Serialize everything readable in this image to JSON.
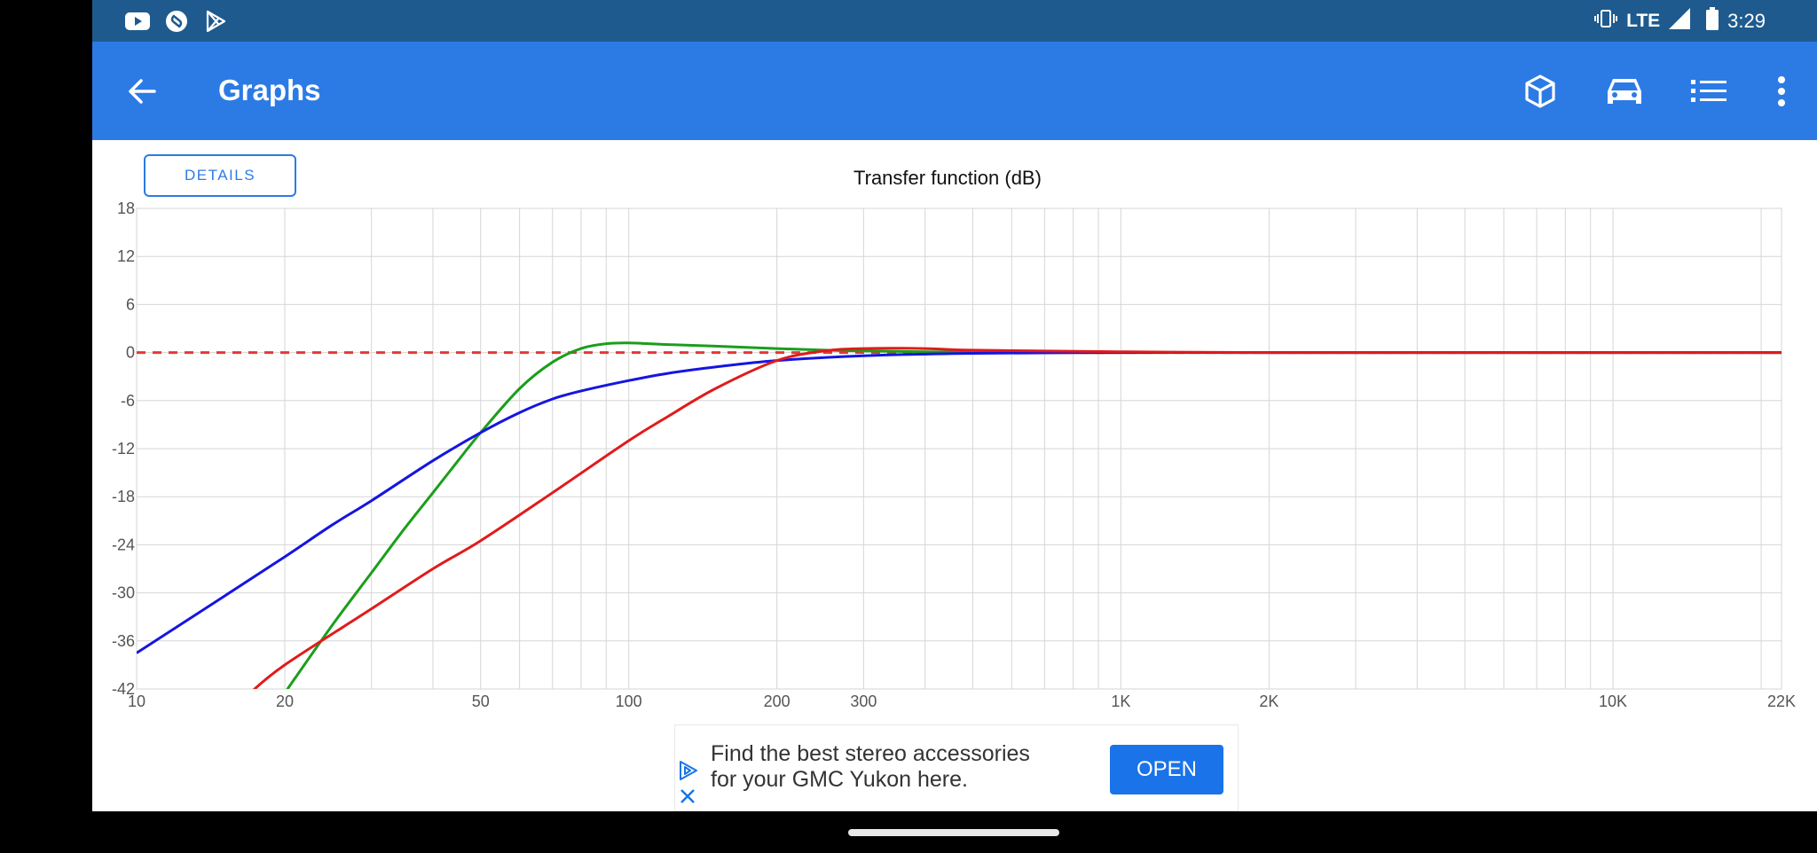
{
  "status_bar": {
    "time": "3:29",
    "network": "LTE",
    "left_icons": [
      "youtube-icon",
      "shazam-icon",
      "play-store-icon"
    ],
    "right_icons": [
      "vibrate-icon",
      "signal-icon",
      "battery-icon"
    ]
  },
  "app_bar": {
    "title": "Graphs",
    "back_icon": "arrow-left-icon",
    "actions": [
      "cube-icon",
      "car-icon",
      "list-icon",
      "more-vert-icon"
    ],
    "color": "#2c7be5"
  },
  "details_button": {
    "label": "DETAILS"
  },
  "chart_data": {
    "type": "line",
    "title": "Transfer function (dB)",
    "x_scale": "log",
    "xlim": [
      10,
      22000
    ],
    "ylim": [
      -42,
      18
    ],
    "x_ticks": [
      {
        "value": 10,
        "label": "10"
      },
      {
        "value": 20,
        "label": "20"
      },
      {
        "value": 50,
        "label": "50"
      },
      {
        "value": 100,
        "label": "100"
      },
      {
        "value": 200,
        "label": "200"
      },
      {
        "value": 300,
        "label": "300"
      },
      {
        "value": 1000,
        "label": "1K"
      },
      {
        "value": 2000,
        "label": "2K"
      },
      {
        "value": 10000,
        "label": "10K"
      },
      {
        "value": 22000,
        "label": "22K"
      }
    ],
    "y_ticks": [
      18,
      12,
      6,
      0,
      -6,
      -12,
      -18,
      -24,
      -30,
      -36,
      -42
    ],
    "grid": true,
    "reference_line": {
      "y": 0,
      "style": "dashed",
      "color": "#e53935"
    },
    "series": [
      {
        "color": "#1b9e1b",
        "x": [
          20,
          25,
          30,
          35,
          40,
          45,
          50,
          60,
          70,
          80,
          90,
          100,
          120,
          150,
          200,
          250,
          300,
          400,
          500,
          700,
          1000,
          2000,
          5000,
          10000,
          22000
        ],
        "y": [
          -42.5,
          -34,
          -27.5,
          -22,
          -17.5,
          -13.5,
          -10,
          -4.5,
          -1.2,
          0.5,
          1.1,
          1.2,
          1.0,
          0.8,
          0.5,
          0.3,
          0.2,
          0.1,
          0.05,
          0,
          0,
          0,
          0,
          0,
          0
        ]
      },
      {
        "color": "#1515e0",
        "x": [
          10,
          15,
          20,
          25,
          30,
          40,
          50,
          60,
          70,
          80,
          100,
          120,
          150,
          200,
          300,
          500,
          1000,
          2000,
          5000,
          10000,
          22000
        ],
        "y": [
          -37.5,
          -30.5,
          -25.5,
          -21.5,
          -18.5,
          -13.5,
          -10,
          -7.5,
          -5.8,
          -4.8,
          -3.5,
          -2.6,
          -1.8,
          -1.0,
          -0.4,
          -0.1,
          0,
          0,
          0,
          0,
          0
        ]
      },
      {
        "color": "#e01b1b",
        "x": [
          17,
          20,
          30,
          40,
          50,
          70,
          100,
          120,
          150,
          200,
          250,
          300,
          400,
          500,
          1000,
          2000,
          5000,
          10000,
          22000
        ],
        "y": [
          -42.5,
          -39,
          -32,
          -27,
          -23.5,
          -17.5,
          -11,
          -8,
          -4.5,
          -1.0,
          0.2,
          0.5,
          0.5,
          0.3,
          0.1,
          0,
          0,
          0,
          0
        ]
      }
    ]
  },
  "ad": {
    "text_line1": "Find the best stereo accessories",
    "text_line2": "for your GMC Yukon here.",
    "cta": "OPEN",
    "adchoices_icon": "ad-choices-icon",
    "close_icon": "close-icon"
  }
}
